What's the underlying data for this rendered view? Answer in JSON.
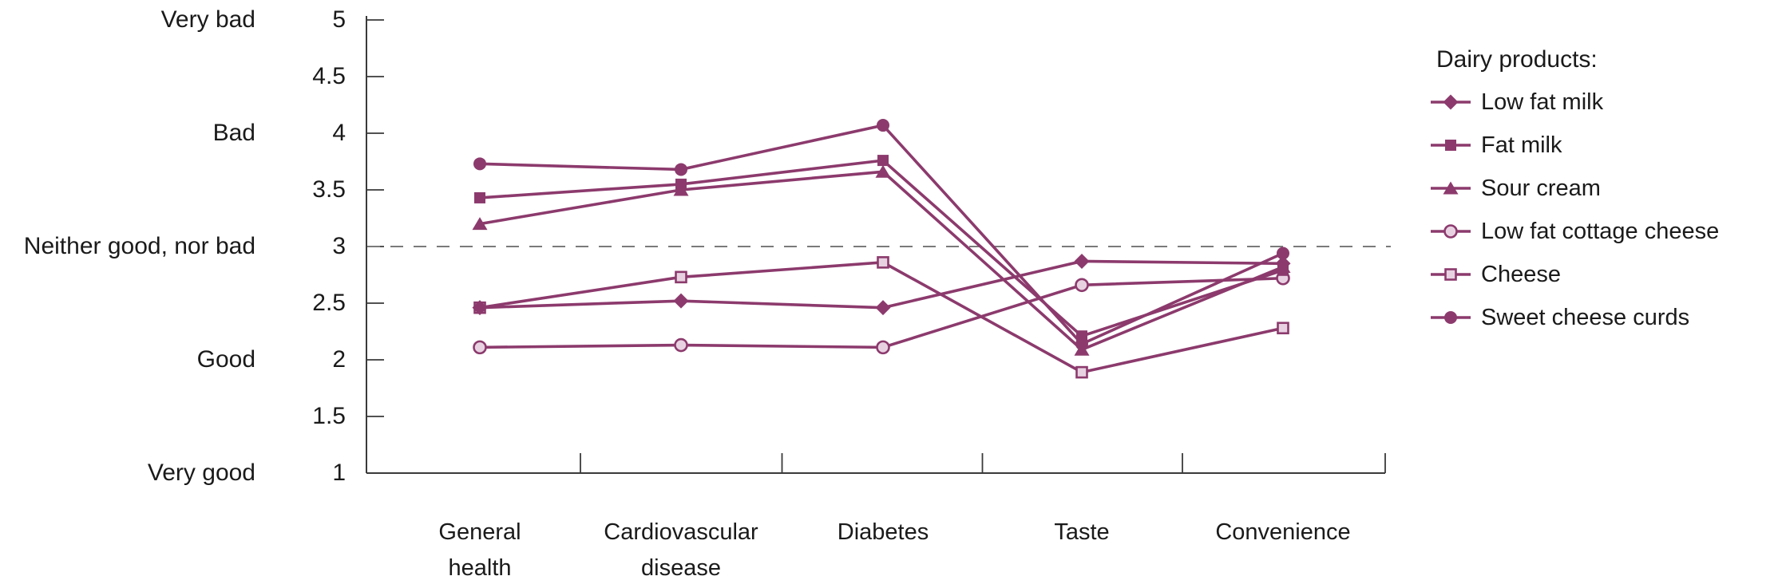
{
  "chart_data": {
    "type": "line",
    "title": "",
    "legend_title": "Dairy products:",
    "legend_position": "right",
    "grid": false,
    "categories": [
      "General health",
      "Cardiovascular disease",
      "Diabetes",
      "Taste",
      "Convenience"
    ],
    "categories_display": [
      [
        "General",
        "health"
      ],
      [
        "Cardiovascular",
        "disease"
      ],
      [
        "Diabetes"
      ],
      [
        "Taste"
      ],
      [
        "Convenience"
      ]
    ],
    "y_axis": {
      "min": 1,
      "max": 5,
      "step": 0.5,
      "tick_labels": [
        "5",
        "4.5",
        "4",
        "3.5",
        "3",
        "2.5",
        "2",
        "1.5",
        "1"
      ],
      "tick_values": [
        5,
        4.5,
        4,
        3.5,
        3,
        2.5,
        2,
        1.5,
        1
      ],
      "semantic_labels": [
        {
          "value": 5,
          "label": "Very bad"
        },
        {
          "value": 4,
          "label": "Bad"
        },
        {
          "value": 3,
          "label": "Neither good, nor bad"
        },
        {
          "value": 2,
          "label": "Good"
        },
        {
          "value": 1,
          "label": "Very good"
        }
      ]
    },
    "reference_line": {
      "value": 3,
      "style": "dashed"
    },
    "series": [
      {
        "name": "Low fat milk",
        "marker": "diamond-filled",
        "values": [
          2.46,
          2.52,
          2.46,
          2.87,
          2.85
        ]
      },
      {
        "name": "Fat milk",
        "marker": "square-filled",
        "values": [
          3.43,
          3.55,
          3.76,
          2.21,
          2.79
        ]
      },
      {
        "name": "Sour cream",
        "marker": "triangle-filled",
        "values": [
          3.2,
          3.5,
          3.66,
          2.09,
          2.82
        ]
      },
      {
        "name": "Low fat cottage cheese",
        "marker": "circle-open",
        "values": [
          2.11,
          2.13,
          2.11,
          2.66,
          2.72
        ]
      },
      {
        "name": "Cheese",
        "marker": "square-open",
        "values": [
          2.46,
          2.73,
          2.86,
          1.89,
          2.28
        ]
      },
      {
        "name": "Sweet cheese curds",
        "marker": "circle-filled",
        "values": [
          3.73,
          3.68,
          4.07,
          2.14,
          2.94
        ]
      }
    ],
    "colors": {
      "line": "#8C3A6D",
      "marker_fill": "#8C3A6D",
      "open_marker_fill": "#E8D2E2",
      "axis": "#3a3a3a",
      "reference_line": "#7a7a7a",
      "text": "#1a1a1a"
    }
  }
}
